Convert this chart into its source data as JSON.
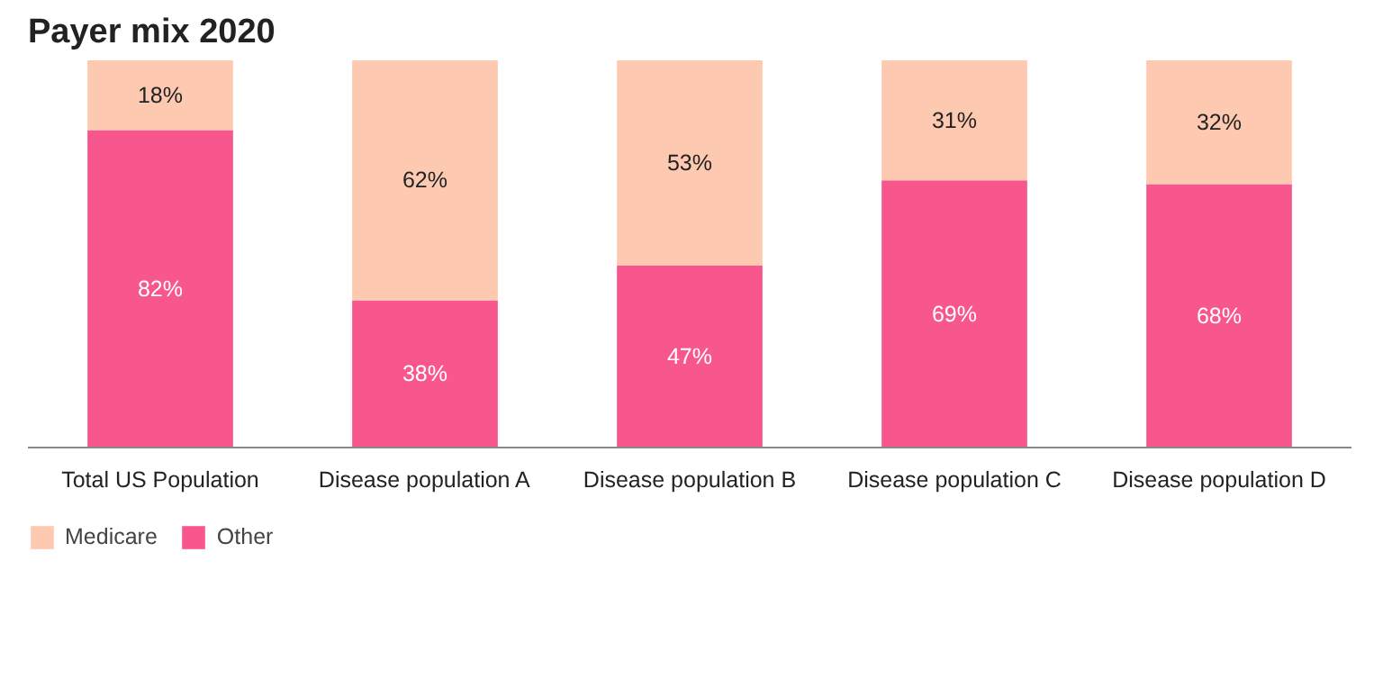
{
  "chart_data": {
    "type": "bar",
    "title": "Payer mix 2020",
    "stacked": true,
    "legend": "bottom",
    "grid": false,
    "categories": [
      "Total US Population",
      "Disease population A",
      "Disease population B",
      "Disease population C",
      "Disease population D"
    ],
    "series": [
      {
        "name": "Other",
        "color": "#f7578c",
        "values": [
          82,
          38,
          47,
          69,
          68
        ],
        "value_labels": [
          "82%",
          "38%",
          "47%",
          "69%",
          "68%"
        ]
      },
      {
        "name": "Medicare",
        "color": "#fdc9b0",
        "values": [
          18,
          62,
          53,
          31,
          32
        ],
        "value_labels": [
          "18%",
          "62%",
          "53%",
          "31%",
          "32%"
        ]
      }
    ]
  }
}
